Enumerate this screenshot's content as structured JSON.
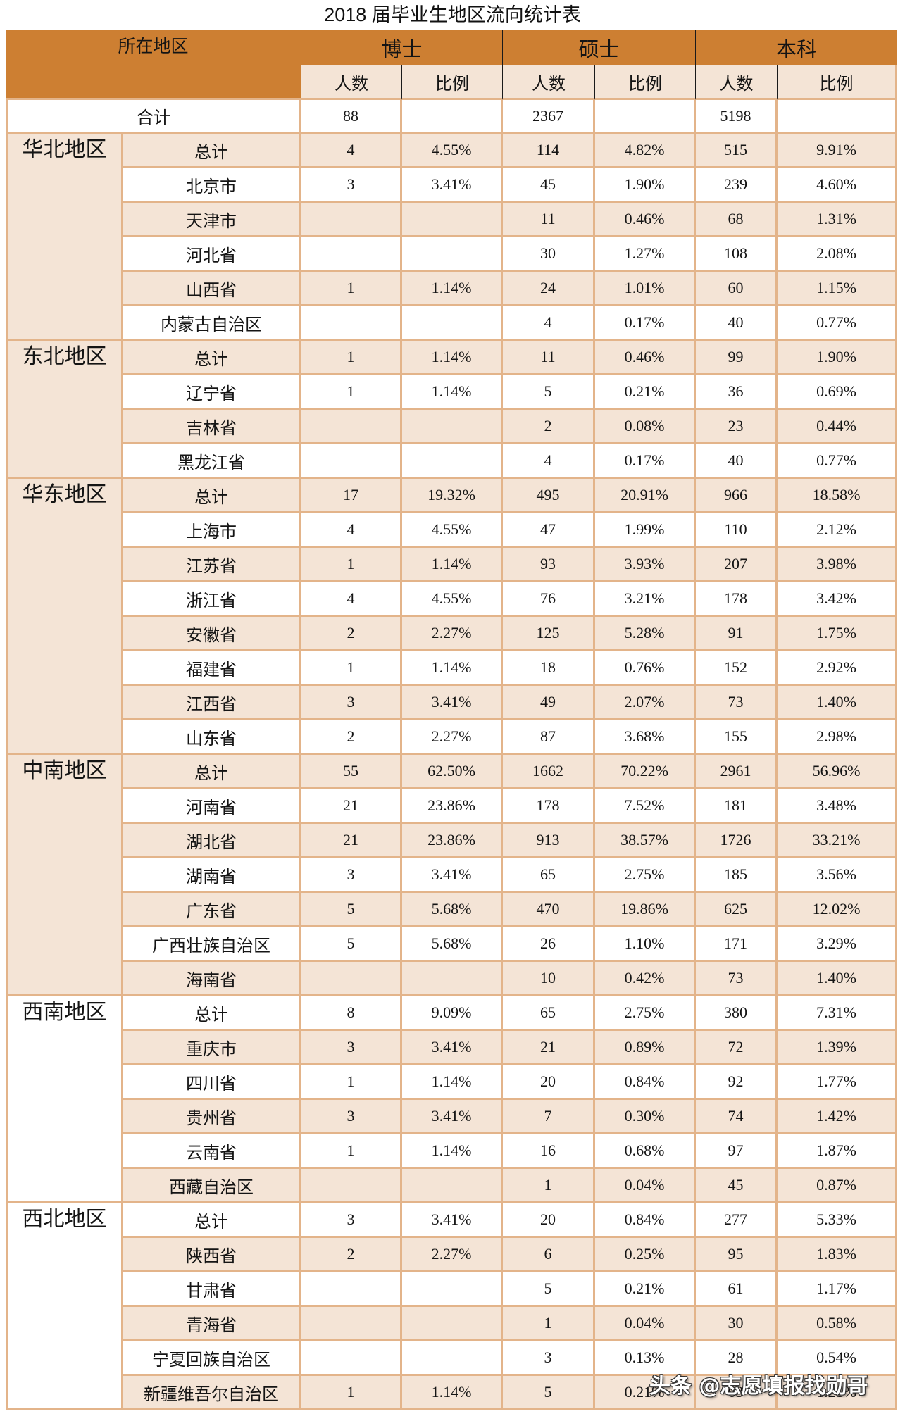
{
  "title": "2018 届毕业生地区流向统计表",
  "header": {
    "region_col": "所在地区",
    "groups": [
      "博士",
      "硕士",
      "本科"
    ],
    "sub_cols": [
      "人数",
      "比例",
      "人数",
      "比例",
      "人数",
      "比例"
    ]
  },
  "total_row": {
    "label": "合计",
    "values": [
      "88",
      "",
      "2367",
      "",
      "5198",
      ""
    ]
  },
  "regions": [
    {
      "name": "华北地区",
      "rows": [
        {
          "name": "总计",
          "values": [
            "4",
            "4.55%",
            "114",
            "4.82%",
            "515",
            "9.91%"
          ]
        },
        {
          "name": "北京市",
          "values": [
            "3",
            "3.41%",
            "45",
            "1.90%",
            "239",
            "4.60%"
          ]
        },
        {
          "name": "天津市",
          "values": [
            "",
            "",
            "11",
            "0.46%",
            "68",
            "1.31%"
          ]
        },
        {
          "name": "河北省",
          "values": [
            "",
            "",
            "30",
            "1.27%",
            "108",
            "2.08%"
          ]
        },
        {
          "name": "山西省",
          "values": [
            "1",
            "1.14%",
            "24",
            "1.01%",
            "60",
            "1.15%"
          ]
        },
        {
          "name": "内蒙古自治区",
          "values": [
            "",
            "",
            "4",
            "0.17%",
            "40",
            "0.77%"
          ]
        }
      ]
    },
    {
      "name": "东北地区",
      "rows": [
        {
          "name": "总计",
          "values": [
            "1",
            "1.14%",
            "11",
            "0.46%",
            "99",
            "1.90%"
          ]
        },
        {
          "name": "辽宁省",
          "values": [
            "1",
            "1.14%",
            "5",
            "0.21%",
            "36",
            "0.69%"
          ]
        },
        {
          "name": "吉林省",
          "values": [
            "",
            "",
            "2",
            "0.08%",
            "23",
            "0.44%"
          ]
        },
        {
          "name": "黑龙江省",
          "values": [
            "",
            "",
            "4",
            "0.17%",
            "40",
            "0.77%"
          ]
        }
      ]
    },
    {
      "name": "华东地区",
      "rows": [
        {
          "name": "总计",
          "values": [
            "17",
            "19.32%",
            "495",
            "20.91%",
            "966",
            "18.58%"
          ]
        },
        {
          "name": "上海市",
          "values": [
            "4",
            "4.55%",
            "47",
            "1.99%",
            "110",
            "2.12%"
          ]
        },
        {
          "name": "江苏省",
          "values": [
            "1",
            "1.14%",
            "93",
            "3.93%",
            "207",
            "3.98%"
          ]
        },
        {
          "name": "浙江省",
          "values": [
            "4",
            "4.55%",
            "76",
            "3.21%",
            "178",
            "3.42%"
          ]
        },
        {
          "name": "安徽省",
          "values": [
            "2",
            "2.27%",
            "125",
            "5.28%",
            "91",
            "1.75%"
          ]
        },
        {
          "name": "福建省",
          "values": [
            "1",
            "1.14%",
            "18",
            "0.76%",
            "152",
            "2.92%"
          ]
        },
        {
          "name": "江西省",
          "values": [
            "3",
            "3.41%",
            "49",
            "2.07%",
            "73",
            "1.40%"
          ]
        },
        {
          "name": "山东省",
          "values": [
            "2",
            "2.27%",
            "87",
            "3.68%",
            "155",
            "2.98%"
          ]
        }
      ]
    },
    {
      "name": "中南地区",
      "rows": [
        {
          "name": "总计",
          "values": [
            "55",
            "62.50%",
            "1662",
            "70.22%",
            "2961",
            "56.96%"
          ]
        },
        {
          "name": "河南省",
          "values": [
            "21",
            "23.86%",
            "178",
            "7.52%",
            "181",
            "3.48%"
          ]
        },
        {
          "name": "湖北省",
          "values": [
            "21",
            "23.86%",
            "913",
            "38.57%",
            "1726",
            "33.21%"
          ]
        },
        {
          "name": "湖南省",
          "values": [
            "3",
            "3.41%",
            "65",
            "2.75%",
            "185",
            "3.56%"
          ]
        },
        {
          "name": "广东省",
          "values": [
            "5",
            "5.68%",
            "470",
            "19.86%",
            "625",
            "12.02%"
          ]
        },
        {
          "name": "广西壮族自治区",
          "values": [
            "5",
            "5.68%",
            "26",
            "1.10%",
            "171",
            "3.29%"
          ]
        },
        {
          "name": "海南省",
          "values": [
            "",
            "",
            "10",
            "0.42%",
            "73",
            "1.40%"
          ]
        }
      ]
    },
    {
      "name": "西南地区",
      "rows": [
        {
          "name": "总计",
          "values": [
            "8",
            "9.09%",
            "65",
            "2.75%",
            "380",
            "7.31%"
          ]
        },
        {
          "name": "重庆市",
          "values": [
            "3",
            "3.41%",
            "21",
            "0.89%",
            "72",
            "1.39%"
          ]
        },
        {
          "name": "四川省",
          "values": [
            "1",
            "1.14%",
            "20",
            "0.84%",
            "92",
            "1.77%"
          ]
        },
        {
          "name": "贵州省",
          "values": [
            "3",
            "3.41%",
            "7",
            "0.30%",
            "74",
            "1.42%"
          ]
        },
        {
          "name": "云南省",
          "values": [
            "1",
            "1.14%",
            "16",
            "0.68%",
            "97",
            "1.87%"
          ]
        },
        {
          "name": "西藏自治区",
          "values": [
            "",
            "",
            "1",
            "0.04%",
            "45",
            "0.87%"
          ]
        }
      ]
    },
    {
      "name": "西北地区",
      "rows": [
        {
          "name": "总计",
          "values": [
            "3",
            "3.41%",
            "20",
            "0.84%",
            "277",
            "5.33%"
          ]
        },
        {
          "name": "陕西省",
          "values": [
            "2",
            "2.27%",
            "6",
            "0.25%",
            "95",
            "1.83%"
          ]
        },
        {
          "name": "甘肃省",
          "values": [
            "",
            "",
            "5",
            "0.21%",
            "61",
            "1.17%"
          ]
        },
        {
          "name": "青海省",
          "values": [
            "",
            "",
            "1",
            "0.04%",
            "30",
            "0.58%"
          ]
        },
        {
          "name": "宁夏回族自治区",
          "values": [
            "",
            "",
            "3",
            "0.13%",
            "28",
            "0.54%"
          ]
        },
        {
          "name": "新疆维吾尔自治区",
          "values": [
            "1",
            "1.14%",
            "5",
            "0.21%",
            "63",
            "1.21%"
          ]
        }
      ]
    }
  ],
  "watermark": "头条 @志愿填报找勋哥",
  "colors": {
    "header": "#CD7F32",
    "shade": "#F4E4D6",
    "border": "#E3B48A",
    "text": "#141414"
  }
}
